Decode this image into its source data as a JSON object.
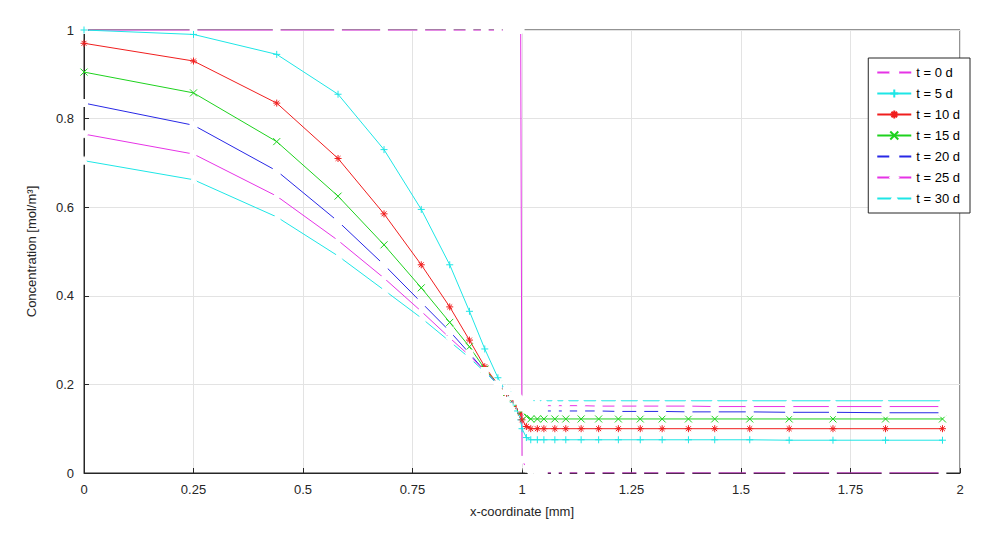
{
  "chart_data": {
    "type": "line",
    "x_label": "x-coordinate [mm]",
    "y_label": "Concentration [mol/m³]",
    "xlim": [
      0,
      2
    ],
    "ylim": [
      0,
      1
    ],
    "xticks": [
      0,
      0.25,
      0.5,
      0.75,
      1,
      1.25,
      1.5,
      1.75,
      2
    ],
    "yticks": [
      0,
      0.2,
      0.4,
      0.6,
      0.8,
      1
    ],
    "grid": true,
    "legend": "top-right",
    "x": [
      0,
      0.25,
      0.44,
      0.58,
      0.685,
      0.77,
      0.835,
      0.88,
      0.915,
      0.945,
      0.965,
      0.98,
      0.99,
      0.997,
      1.0,
      1.01,
      1.02,
      1.035,
      1.05,
      1.075,
      1.1,
      1.135,
      1.175,
      1.22,
      1.27,
      1.32,
      1.38,
      1.44,
      1.52,
      1.61,
      1.71,
      1.83,
      1.96
    ],
    "series": [
      {
        "name": "t = 0 d",
        "color": "#e633e6",
        "marker": "circle",
        "values": [
          1,
          1,
          1,
          1,
          1,
          1,
          1,
          1,
          1,
          1,
          1,
          1,
          1,
          1,
          0.03,
          0.01,
          0.004,
          0.001,
          0,
          0,
          0,
          0,
          0,
          0,
          0,
          0,
          0,
          0,
          0,
          0,
          0,
          0,
          0
        ]
      },
      {
        "name": "t = 5 d",
        "color": "#1ee6e6",
        "marker": "plus",
        "values": [
          1.0,
          0.99,
          0.945,
          0.855,
          0.73,
          0.595,
          0.47,
          0.365,
          0.28,
          0.215,
          0.18,
          0.16,
          0.14,
          0.12,
          0.1,
          0.08,
          0.075,
          0.075,
          0.075,
          0.075,
          0.075,
          0.075,
          0.075,
          0.075,
          0.075,
          0.075,
          0.075,
          0.075,
          0.075,
          0.074,
          0.074,
          0.074,
          0.074
        ]
      },
      {
        "name": "t = 10 d",
        "color": "#f01e1e",
        "marker": "asterisk",
        "values": [
          0.97,
          0.93,
          0.835,
          0.71,
          0.585,
          0.47,
          0.375,
          0.3,
          0.24,
          0.2,
          0.18,
          0.165,
          0.15,
          0.135,
          0.12,
          0.105,
          0.1,
          0.1,
          0.1,
          0.1,
          0.1,
          0.1,
          0.1,
          0.1,
          0.1,
          0.1,
          0.1,
          0.1,
          0.1,
          0.1,
          0.1,
          0.1,
          0.1
        ]
      },
      {
        "name": "t = 15 d",
        "color": "#1ed21e",
        "marker": "x",
        "values": [
          0.905,
          0.858,
          0.748,
          0.625,
          0.515,
          0.418,
          0.34,
          0.285,
          0.235,
          0.2,
          0.182,
          0.17,
          0.158,
          0.148,
          0.14,
          0.128,
          0.122,
          0.122,
          0.122,
          0.122,
          0.122,
          0.122,
          0.122,
          0.122,
          0.122,
          0.122,
          0.122,
          0.122,
          0.122,
          0.122,
          0.122,
          0.122,
          0.122
        ]
      },
      {
        "name": "t = 20 d",
        "color": "#2828e6",
        "marker": "square",
        "values": [
          0.835,
          0.785,
          0.682,
          0.568,
          0.47,
          0.385,
          0.32,
          0.27,
          0.23,
          0.2,
          0.185,
          0.173,
          0.163,
          0.155,
          0.148,
          0.143,
          0.14,
          0.14,
          0.14,
          0.14,
          0.14,
          0.14,
          0.14,
          0.139,
          0.139,
          0.139,
          0.138,
          0.138,
          0.138,
          0.137,
          0.137,
          0.136,
          0.136
        ]
      },
      {
        "name": "t = 25 d",
        "color": "#e633e6",
        "marker": "diamond",
        "values": [
          0.765,
          0.72,
          0.625,
          0.525,
          0.44,
          0.365,
          0.305,
          0.265,
          0.23,
          0.2,
          0.187,
          0.176,
          0.168,
          0.162,
          0.157,
          0.154,
          0.152,
          0.152,
          0.152,
          0.152,
          0.152,
          0.152,
          0.151,
          0.151,
          0.151,
          0.151,
          0.151,
          0.15,
          0.15,
          0.15,
          0.15,
          0.15,
          0.15
        ]
      },
      {
        "name": "t = 30 d",
        "color": "#1ee6e6",
        "marker": "triangle",
        "values": [
          0.705,
          0.662,
          0.578,
          0.49,
          0.413,
          0.35,
          0.297,
          0.26,
          0.228,
          0.2,
          0.189,
          0.18,
          0.173,
          0.168,
          0.165,
          0.164,
          0.163,
          0.163,
          0.163,
          0.163,
          0.163,
          0.163,
          0.163,
          0.163,
          0.163,
          0.163,
          0.163,
          0.163,
          0.163,
          0.163,
          0.163,
          0.163,
          0.163
        ]
      }
    ]
  }
}
